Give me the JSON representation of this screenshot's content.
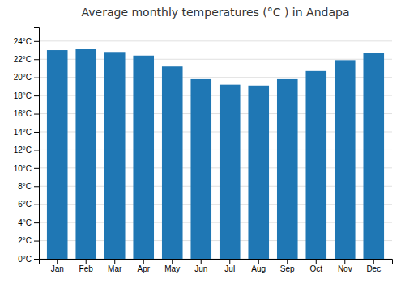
{
  "chart_data": {
    "type": "bar",
    "title": "Average monthly temperatures (°C ) in Andapa",
    "categories": [
      "Jan",
      "Feb",
      "Mar",
      "Apr",
      "May",
      "Jun",
      "Jul",
      "Aug",
      "Sep",
      "Oct",
      "Nov",
      "Dec"
    ],
    "values": [
      23.0,
      23.1,
      22.8,
      22.4,
      21.2,
      19.8,
      19.2,
      19.1,
      19.8,
      20.7,
      21.9,
      22.7
    ],
    "ylim": [
      0,
      25.5
    ],
    "yticks": [
      {
        "value": 0,
        "label": "0°C"
      },
      {
        "value": 2,
        "label": "2°C"
      },
      {
        "value": 4,
        "label": "4°C"
      },
      {
        "value": 6,
        "label": "6°C"
      },
      {
        "value": 8,
        "label": "8°C"
      },
      {
        "value": 10,
        "label": "10°C"
      },
      {
        "value": 12,
        "label": "12°C"
      },
      {
        "value": 14,
        "label": "14°C"
      },
      {
        "value": 16,
        "label": "16°C"
      },
      {
        "value": 18,
        "label": "18°C"
      },
      {
        "value": 20,
        "label": "20°C"
      },
      {
        "value": 22,
        "label": "22°C"
      },
      {
        "value": 24,
        "label": "24°C"
      }
    ],
    "grid": true
  }
}
